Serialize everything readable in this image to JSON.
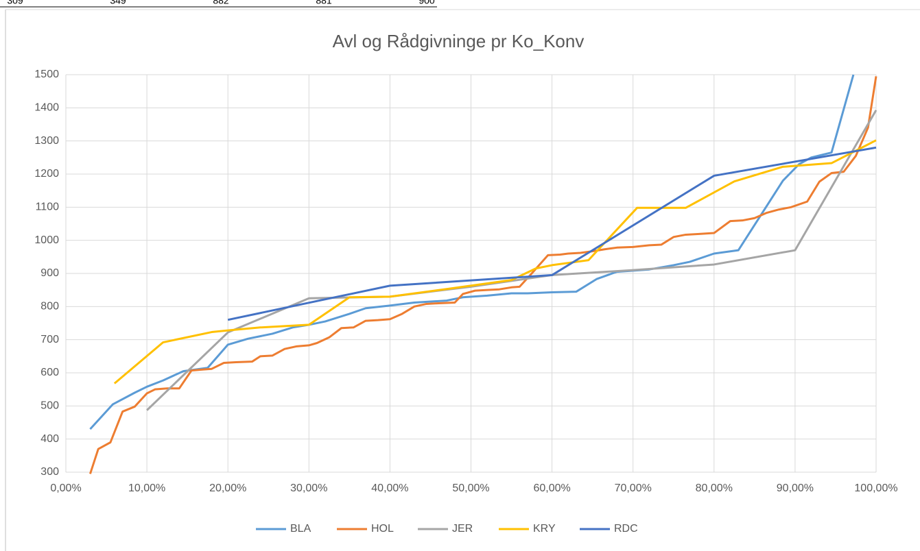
{
  "sheet_fragment": [
    "309",
    "349",
    "882",
    "881",
    "900"
  ],
  "chart_data": {
    "type": "line",
    "title": "Avl og Rådgivninge pr Ko_Konv",
    "xlim": [
      0,
      100
    ],
    "xticks": [
      {
        "value": 0,
        "label": "0,00%"
      },
      {
        "value": 10,
        "label": "10,00%"
      },
      {
        "value": 20,
        "label": "20,00%"
      },
      {
        "value": 30,
        "label": "30,00%"
      },
      {
        "value": 40,
        "label": "40,00%"
      },
      {
        "value": 50,
        "label": "50,00%"
      },
      {
        "value": 60,
        "label": "60,00%"
      },
      {
        "value": 70,
        "label": "70,00%"
      },
      {
        "value": 80,
        "label": "80,00%"
      },
      {
        "value": 90,
        "label": "90,00%"
      },
      {
        "value": 100,
        "label": "100,00%"
      }
    ],
    "ylim": [
      300,
      1500
    ],
    "yticks": [
      300,
      400,
      500,
      600,
      700,
      800,
      900,
      1000,
      1100,
      1200,
      1300,
      1400,
      1500
    ],
    "grid": true,
    "legend": "bottom",
    "series": [
      {
        "name": "BLA",
        "color": "#5b9bd5",
        "x": [
          3,
          5.8,
          8.5,
          10,
          12,
          14.5,
          17.5,
          20,
          22.5,
          25.5,
          28,
          30,
          32,
          35,
          37,
          40,
          43,
          47,
          49,
          52,
          55,
          57,
          60,
          63,
          65.5,
          68,
          72,
          75,
          77,
          80,
          83,
          88.5,
          90.5,
          92,
          94.5,
          97.2
        ],
        "values": [
          430,
          505,
          540,
          558,
          577,
          605,
          615,
          685,
          703,
          718,
          737,
          745,
          755,
          778,
          795,
          803,
          812,
          818,
          828,
          833,
          840,
          840,
          843,
          845,
          883,
          905,
          912,
          925,
          935,
          960,
          970,
          1180,
          1230,
          1250,
          1265,
          1500
        ]
      },
      {
        "name": "HOL",
        "color": "#ed7d31",
        "x": [
          3,
          4,
          5.5,
          7,
          8.5,
          10,
          11,
          12.5,
          14,
          15.5,
          17,
          18,
          19.5,
          21,
          23,
          24,
          25.5,
          27,
          28.5,
          30,
          31,
          32.5,
          34,
          35.5,
          37,
          38.5,
          40,
          41.5,
          43,
          44.5,
          46,
          48,
          49,
          50.5,
          52,
          53.5,
          55,
          56,
          57.5,
          59.5,
          61,
          62,
          63.5,
          65,
          66.5,
          68,
          70,
          72,
          73.5,
          75,
          76.5,
          78,
          80,
          82,
          83.5,
          85,
          86.5,
          88,
          89.5,
          91.5,
          93,
          94.5,
          96,
          97.5,
          99,
          100
        ],
        "values": [
          295,
          370,
          390,
          483,
          498,
          538,
          550,
          553,
          553,
          607,
          610,
          612,
          630,
          632,
          634,
          650,
          652,
          672,
          680,
          683,
          690,
          707,
          735,
          737,
          757,
          759,
          762,
          778,
          800,
          808,
          810,
          812,
          838,
          848,
          850,
          852,
          858,
          860,
          900,
          955,
          957,
          960,
          962,
          967,
          973,
          978,
          980,
          985,
          987,
          1010,
          1017,
          1019,
          1022,
          1058,
          1060,
          1067,
          1083,
          1093,
          1100,
          1117,
          1177,
          1203,
          1207,
          1255,
          1340,
          1495
        ]
      },
      {
        "name": "JER",
        "color": "#a5a5a5",
        "x": [
          10,
          20,
          30,
          40,
          50,
          60,
          70,
          80,
          90,
          100
        ],
        "values": [
          487,
          722,
          825,
          830,
          860,
          895,
          910,
          927,
          970,
          1393
        ]
      },
      {
        "name": "KRY",
        "color": "#ffc000",
        "x": [
          6,
          12,
          18,
          20,
          24,
          30,
          35,
          40,
          47,
          55,
          58,
          60,
          64.5,
          70.5,
          76.5,
          82.5,
          88.5,
          94.5,
          100
        ],
        "values": [
          568,
          692,
          723,
          728,
          737,
          745,
          828,
          830,
          853,
          880,
          915,
          925,
          940,
          1098,
          1098,
          1178,
          1222,
          1233,
          1302
        ]
      },
      {
        "name": "RDC",
        "color": "#4472c4",
        "x": [
          20,
          40,
          60,
          80,
          100
        ],
        "values": [
          760,
          863,
          895,
          1195,
          1280
        ]
      }
    ]
  }
}
